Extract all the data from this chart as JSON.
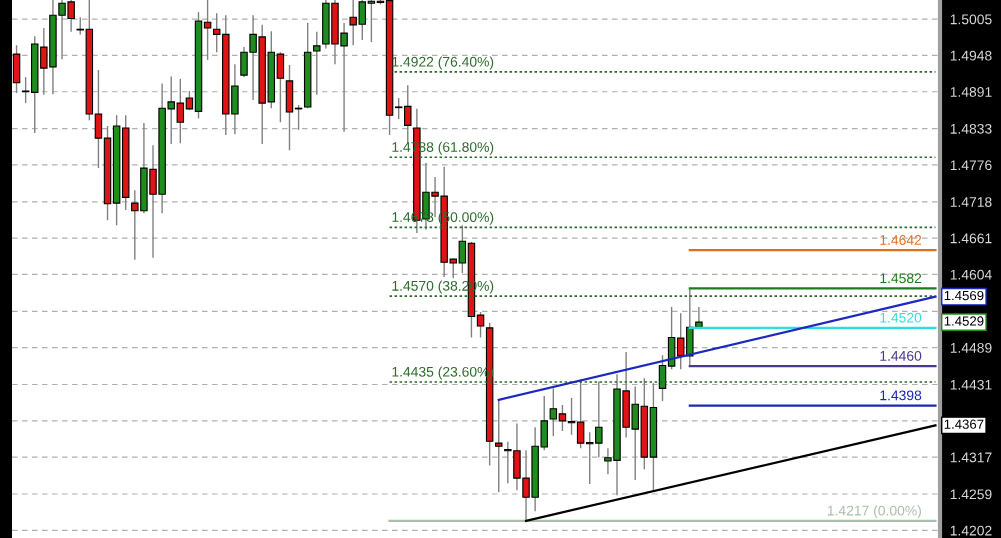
{
  "chart_data": {
    "type": "candlestick",
    "categories": [
      null,
      null,
      null,
      null,
      null,
      null,
      null,
      null,
      null,
      null,
      null,
      null,
      null,
      null,
      null,
      null,
      null,
      null,
      null,
      null,
      null,
      null,
      null,
      null,
      null,
      null,
      null,
      null,
      null,
      null,
      null,
      null,
      null,
      null,
      null,
      null,
      null,
      null,
      null,
      null,
      null,
      null,
      null,
      null,
      null,
      null,
      null,
      null,
      null,
      null,
      null,
      null,
      null,
      null,
      null,
      null,
      null,
      null,
      null,
      null,
      null,
      null,
      null,
      null,
      null,
      null,
      null,
      null,
      null,
      null,
      null,
      null,
      null,
      null,
      null,
      null,
      null,
      null,
      null,
      null,
      null,
      null,
      null,
      null,
      null,
      null,
      null,
      null,
      null,
      null,
      null,
      null,
      null,
      null,
      null,
      null,
      null,
      null,
      null,
      null,
      null,
      null
    ],
    "ohlc": [
      [
        1.495,
        1.4964,
        1.4889,
        1.4905
      ],
      [
        1.4892,
        1.4914,
        1.4873,
        1.4891
      ],
      [
        1.489,
        1.4978,
        1.4826,
        1.4966
      ],
      [
        1.4961,
        1.4991,
        1.4886,
        1.4928
      ],
      [
        1.493,
        1.5035,
        1.4887,
        1.5011
      ],
      [
        1.5011,
        1.5035,
        1.4942,
        1.503
      ],
      [
        1.5032,
        1.5035,
        1.4985,
        1.5006
      ],
      [
        1.4989,
        1.5008,
        1.4981,
        1.4988
      ],
      [
        1.4989,
        1.5035,
        1.4846,
        1.4856
      ],
      [
        1.4856,
        1.4925,
        1.4771,
        1.4818
      ],
      [
        1.4818,
        1.4837,
        1.4689,
        1.4715
      ],
      [
        1.4716,
        1.4854,
        1.4681,
        1.4837
      ],
      [
        1.4834,
        1.4854,
        1.4705,
        1.4725
      ],
      [
        1.4716,
        1.4736,
        1.4627,
        1.4704
      ],
      [
        1.4704,
        1.4842,
        1.47,
        1.4771
      ],
      [
        1.4769,
        1.4807,
        1.463,
        1.473
      ],
      [
        1.473,
        1.4904,
        1.47,
        1.4865
      ],
      [
        1.4864,
        1.4915,
        1.4809,
        1.4875
      ],
      [
        1.4873,
        1.4911,
        1.481,
        1.4843
      ],
      [
        1.4881,
        1.4892,
        1.4862,
        1.4864
      ],
      [
        1.486,
        1.5016,
        1.4849,
        1.5002
      ],
      [
        1.5,
        1.5035,
        1.4941,
        1.4991
      ],
      [
        1.4989,
        1.5014,
        1.4953,
        1.4981
      ],
      [
        1.4981,
        1.5011,
        1.4823,
        1.4856
      ],
      [
        1.4856,
        1.4934,
        1.4824,
        1.49
      ],
      [
        1.4917,
        1.4961,
        1.4914,
        1.4953
      ],
      [
        1.4953,
        1.5011,
        1.4878,
        1.4981
      ],
      [
        1.4977,
        1.4996,
        1.4809,
        1.4873
      ],
      [
        1.4875,
        1.4986,
        1.4865,
        1.4953
      ],
      [
        1.495,
        1.4953,
        1.4843,
        1.4912
      ],
      [
        1.4908,
        1.4933,
        1.4799,
        1.4859
      ],
      [
        1.4865,
        1.487,
        1.4831,
        1.4864
      ],
      [
        1.4867,
        1.4999,
        1.4865,
        1.4953
      ],
      [
        1.4955,
        1.4985,
        1.4886,
        1.4963
      ],
      [
        1.4966,
        1.5035,
        1.4959,
        1.503
      ],
      [
        1.503,
        1.5035,
        1.4934,
        1.4966
      ],
      [
        1.4963,
        1.4999,
        1.4828,
        1.4983
      ],
      [
        1.5008,
        1.5035,
        1.4964,
        1.4996
      ],
      [
        1.4997,
        1.5035,
        1.4972,
        1.5032
      ],
      [
        1.503,
        1.5035,
        1.4969,
        1.5033
      ],
      [
        1.5033,
        1.5035,
        1.5028,
        1.5031
      ],
      [
        1.5034,
        1.5035,
        1.4823,
        1.4854
      ],
      [
        1.4867,
        1.4881,
        1.4848,
        1.4866
      ],
      [
        1.4868,
        1.4901,
        1.481,
        1.4838
      ],
      [
        1.4834,
        1.4864,
        1.4669,
        1.4689
      ],
      [
        1.4691,
        1.4779,
        1.4674,
        1.4733
      ],
      [
        1.4733,
        1.4757,
        1.4694,
        1.4727
      ],
      [
        1.4727,
        1.4773,
        1.46,
        1.4623
      ],
      [
        1.4628,
        1.4629,
        1.4598,
        1.4622
      ],
      [
        1.4622,
        1.4681,
        1.4606,
        1.4656
      ],
      [
        1.4653,
        1.4655,
        1.4505,
        1.4538
      ],
      [
        1.454,
        1.4545,
        1.4505,
        1.4523
      ],
      [
        1.452,
        1.4528,
        1.4304,
        1.4342
      ],
      [
        1.4339,
        1.4408,
        1.4262,
        1.4334
      ],
      [
        1.4329,
        1.4341,
        1.4276,
        1.4327
      ],
      [
        1.4327,
        1.437,
        1.4265,
        1.4284
      ],
      [
        1.4284,
        1.4328,
        1.4217,
        1.4254
      ],
      [
        1.4254,
        1.4364,
        1.4232,
        1.4334
      ],
      [
        1.4333,
        1.4413,
        1.4328,
        1.4374
      ],
      [
        1.4377,
        1.4425,
        1.435,
        1.4393
      ],
      [
        1.4385,
        1.4399,
        1.4358,
        1.4374
      ],
      [
        1.4373,
        1.441,
        1.4352,
        1.4371
      ],
      [
        1.4372,
        1.4439,
        1.4331,
        1.4339
      ],
      [
        1.434,
        1.4356,
        1.4275,
        1.4338
      ],
      [
        1.4339,
        1.4436,
        1.4317,
        1.4364
      ],
      [
        1.4311,
        1.4331,
        1.429,
        1.4316
      ],
      [
        1.4312,
        1.4447,
        1.4257,
        1.4424
      ],
      [
        1.4421,
        1.4482,
        1.4348,
        1.4364
      ],
      [
        1.4361,
        1.4428,
        1.4281,
        1.44
      ],
      [
        1.4397,
        1.4441,
        1.4298,
        1.4317
      ],
      [
        1.4317,
        1.4433,
        1.4264,
        1.4395
      ],
      [
        1.4425,
        1.4477,
        1.4405,
        1.4461
      ],
      [
        1.446,
        1.4553,
        1.4455,
        1.4505
      ],
      [
        1.4504,
        1.4543,
        1.4455,
        1.4476
      ],
      [
        1.4476,
        1.4582,
        1.446,
        1.4521
      ],
      [
        1.4521,
        1.4553,
        1.452,
        1.4529
      ],
      null,
      null,
      null,
      null,
      null,
      null,
      null,
      null,
      null,
      null,
      null,
      null,
      null,
      null,
      null,
      null,
      null,
      null,
      null,
      null,
      null,
      null,
      null,
      null,
      null,
      null
    ],
    "colors": [
      "#e01414",
      "#e01414",
      "#1e8c1e",
      "#e01414",
      "#1e8c1e",
      "#1e8c1e",
      "#e01414",
      "#e01414",
      "#e01414",
      "#e01414",
      "#e01414",
      "#1e8c1e",
      "#e01414",
      "#e01414",
      "#1e8c1e",
      "#e01414",
      "#1e8c1e",
      "#1e8c1e",
      "#e01414",
      "#e01414",
      "#1e8c1e",
      "#e01414",
      "#e01414",
      "#e01414",
      "#1e8c1e",
      "#1e8c1e",
      "#1e8c1e",
      "#e01414",
      "#1e8c1e",
      "#e01414",
      "#e01414",
      "#e01414",
      "#1e8c1e",
      "#1e8c1e",
      "#1e8c1e",
      "#e01414",
      "#1e8c1e",
      "#e01414",
      "#1e8c1e",
      "#1e8c1e",
      "#e01414",
      "#e01414",
      "#e01414",
      "#e01414",
      "#e01414",
      "#1e8c1e",
      "#e01414",
      "#e01414",
      "#e01414",
      "#1e8c1e",
      "#e01414",
      "#e01414",
      "#e01414",
      "#e01414",
      "#e01414",
      "#e01414",
      "#e01414",
      "#1e8c1e",
      "#1e8c1e",
      "#1e8c1e",
      "#e01414",
      "#e01414",
      "#e01414",
      "#e01414",
      "#1e8c1e",
      "#1e8c1e",
      "#1e8c1e",
      "#e01414",
      "#1e8c1e",
      "#e01414",
      "#1e8c1e",
      "#1e8c1e",
      "#1e8c1e",
      "#e01414",
      "#1e8c1e",
      "#1e8c1e",
      null,
      null,
      null,
      null,
      null,
      null,
      null,
      null,
      null,
      null,
      null,
      null,
      null,
      null,
      null,
      null,
      null,
      null,
      null,
      null,
      null,
      null,
      null,
      null,
      null,
      null
    ],
    "series": [
      {
        "type": "line",
        "name": "1.4922 (76.40%)",
        "color": "#2d6a2d",
        "line_style": "dotted",
        "values": [
          null,
          null,
          null,
          null,
          null,
          null,
          null,
          null,
          null,
          null,
          null,
          null,
          null,
          null,
          null,
          null,
          null,
          null,
          null,
          null,
          null,
          null,
          null,
          null,
          null,
          null,
          null,
          null,
          null,
          null,
          null,
          null,
          null,
          null,
          null,
          null,
          null,
          null,
          null,
          null,
          null,
          1.4922,
          1.4922,
          1.4922,
          1.4922,
          1.4922,
          1.4922,
          1.4922,
          1.4922,
          1.4922,
          1.4922,
          1.4922,
          1.4922,
          1.4922,
          1.4922,
          1.4922,
          1.4922,
          1.4922,
          1.4922,
          1.4922,
          1.4922,
          1.4922,
          1.4922,
          1.4922,
          1.4922,
          1.4922,
          1.4922,
          1.4922,
          1.4922,
          1.4922,
          1.4922,
          1.4922,
          1.4922,
          1.4922,
          1.4922,
          1.4922,
          1.4922,
          1.4922,
          1.4922,
          1.4922,
          1.4922,
          1.4922,
          1.4922,
          1.4922,
          1.4922,
          1.4922,
          1.4922,
          1.4922,
          1.4922,
          1.4922,
          1.4922,
          1.4922,
          1.4922,
          1.4922,
          1.4922,
          1.4922,
          1.4922,
          1.4922,
          1.4922,
          1.4922,
          1.4922,
          1.4922
        ]
      },
      {
        "type": "line",
        "name": "1.4788 (61.80%)",
        "color": "#2d6a2d",
        "line_style": "dotted",
        "values": [
          null,
          null,
          null,
          null,
          null,
          null,
          null,
          null,
          null,
          null,
          null,
          null,
          null,
          null,
          null,
          null,
          null,
          null,
          null,
          null,
          null,
          null,
          null,
          null,
          null,
          null,
          null,
          null,
          null,
          null,
          null,
          null,
          null,
          null,
          null,
          null,
          null,
          null,
          null,
          null,
          null,
          1.4788,
          1.4788,
          1.4788,
          1.4788,
          1.4788,
          1.4788,
          1.4788,
          1.4788,
          1.4788,
          1.4788,
          1.4788,
          1.4788,
          1.4788,
          1.4788,
          1.4788,
          1.4788,
          1.4788,
          1.4788,
          1.4788,
          1.4788,
          1.4788,
          1.4788,
          1.4788,
          1.4788,
          1.4788,
          1.4788,
          1.4788,
          1.4788,
          1.4788,
          1.4788,
          1.4788,
          1.4788,
          1.4788,
          1.4788,
          1.4788,
          1.4788,
          1.4788,
          1.4788,
          1.4788,
          1.4788,
          1.4788,
          1.4788,
          1.4788,
          1.4788,
          1.4788,
          1.4788,
          1.4788,
          1.4788,
          1.4788,
          1.4788,
          1.4788,
          1.4788,
          1.4788,
          1.4788,
          1.4788,
          1.4788,
          1.4788,
          1.4788,
          1.4788,
          1.4788,
          1.4788
        ]
      },
      {
        "type": "line",
        "name": "1.4678 (50.00%)",
        "color": "#2d6a2d",
        "line_style": "dotted",
        "values": [
          null,
          null,
          null,
          null,
          null,
          null,
          null,
          null,
          null,
          null,
          null,
          null,
          null,
          null,
          null,
          null,
          null,
          null,
          null,
          null,
          null,
          null,
          null,
          null,
          null,
          null,
          null,
          null,
          null,
          null,
          null,
          null,
          null,
          null,
          null,
          null,
          null,
          null,
          null,
          null,
          null,
          1.4678,
          1.4678,
          1.4678,
          1.4678,
          1.4678,
          1.4678,
          1.4678,
          1.4678,
          1.4678,
          1.4678,
          1.4678,
          1.4678,
          1.4678,
          1.4678,
          1.4678,
          1.4678,
          1.4678,
          1.4678,
          1.4678,
          1.4678,
          1.4678,
          1.4678,
          1.4678,
          1.4678,
          1.4678,
          1.4678,
          1.4678,
          1.4678,
          1.4678,
          1.4678,
          1.4678,
          1.4678,
          1.4678,
          1.4678,
          1.4678,
          1.4678,
          1.4678,
          1.4678,
          1.4678,
          1.4678,
          1.4678,
          1.4678,
          1.4678,
          1.4678,
          1.4678,
          1.4678,
          1.4678,
          1.4678,
          1.4678,
          1.4678,
          1.4678,
          1.4678,
          1.4678,
          1.4678,
          1.4678,
          1.4678,
          1.4678,
          1.4678,
          1.4678,
          1.4678,
          1.4678
        ]
      },
      {
        "type": "line",
        "name": "1.4570 (38.20%)",
        "color": "#2d6a2d",
        "line_style": "dotted",
        "values": [
          null,
          null,
          null,
          null,
          null,
          null,
          null,
          null,
          null,
          null,
          null,
          null,
          null,
          null,
          null,
          null,
          null,
          null,
          null,
          null,
          null,
          null,
          null,
          null,
          null,
          null,
          null,
          null,
          null,
          null,
          null,
          null,
          null,
          null,
          null,
          null,
          null,
          null,
          null,
          null,
          null,
          1.457,
          1.457,
          1.457,
          1.457,
          1.457,
          1.457,
          1.457,
          1.457,
          1.457,
          1.457,
          1.457,
          1.457,
          1.457,
          1.457,
          1.457,
          1.457,
          1.457,
          1.457,
          1.457,
          1.457,
          1.457,
          1.457,
          1.457,
          1.457,
          1.457,
          1.457,
          1.457,
          1.457,
          1.457,
          1.457,
          1.457,
          1.457,
          1.457,
          1.457,
          1.457,
          1.457,
          1.457,
          1.457,
          1.457,
          1.457,
          1.457,
          1.457,
          1.457,
          1.457,
          1.457,
          1.457,
          1.457,
          1.457,
          1.457,
          1.457,
          1.457,
          1.457,
          1.457,
          1.457,
          1.457,
          1.457,
          1.457,
          1.457,
          1.457,
          1.457,
          1.457
        ]
      },
      {
        "type": "line",
        "name": "1.4435 (23.60%)",
        "color": "#2d6a2d",
        "line_style": "dotted",
        "values": [
          null,
          null,
          null,
          null,
          null,
          null,
          null,
          null,
          null,
          null,
          null,
          null,
          null,
          null,
          null,
          null,
          null,
          null,
          null,
          null,
          null,
          null,
          null,
          null,
          null,
          null,
          null,
          null,
          null,
          null,
          null,
          null,
          null,
          null,
          null,
          null,
          null,
          null,
          null,
          null,
          null,
          1.4435,
          1.4435,
          1.4435,
          1.4435,
          1.4435,
          1.4435,
          1.4435,
          1.4435,
          1.4435,
          1.4435,
          1.4435,
          1.4435,
          1.4435,
          1.4435,
          1.4435,
          1.4435,
          1.4435,
          1.4435,
          1.4435,
          1.4435,
          1.4435,
          1.4435,
          1.4435,
          1.4435,
          1.4435,
          1.4435,
          1.4435,
          1.4435,
          1.4435,
          1.4435,
          1.4435,
          1.4435,
          1.4435,
          1.4435,
          1.4435,
          1.4435,
          1.4435,
          1.4435,
          1.4435,
          1.4435,
          1.4435,
          1.4435,
          1.4435,
          1.4435,
          1.4435,
          1.4435,
          1.4435,
          1.4435,
          1.4435,
          1.4435,
          1.4435,
          1.4435,
          1.4435,
          1.4435,
          1.4435,
          1.4435,
          1.4435,
          1.4435,
          1.4435,
          1.4435,
          1.4435
        ]
      },
      {
        "type": "line",
        "name": "1.4217 (0.00%)",
        "color": "#a9bfa9",
        "line_style": "solid",
        "values": [
          null,
          null,
          null,
          null,
          null,
          null,
          null,
          null,
          null,
          null,
          null,
          null,
          null,
          null,
          null,
          null,
          null,
          null,
          null,
          null,
          null,
          null,
          null,
          null,
          null,
          null,
          null,
          null,
          null,
          null,
          null,
          null,
          null,
          null,
          null,
          null,
          null,
          null,
          null,
          null,
          null,
          1.4217,
          1.4217,
          1.4217,
          1.4217,
          1.4217,
          1.4217,
          1.4217,
          1.4217,
          1.4217,
          1.4217,
          1.4217,
          1.4217,
          1.4217,
          1.4217,
          1.4217,
          1.4217,
          1.4217,
          1.4217,
          1.4217,
          1.4217,
          1.4217,
          1.4217,
          1.4217,
          1.4217,
          1.4217,
          1.4217,
          1.4217,
          1.4217,
          1.4217,
          1.4217,
          1.4217,
          1.4217,
          1.4217,
          1.4217,
          1.4217,
          1.4217,
          1.4217,
          1.4217,
          1.4217,
          1.4217,
          1.4217,
          1.4217,
          1.4217,
          1.4217,
          1.4217,
          1.4217,
          1.4217,
          1.4217,
          1.4217,
          1.4217,
          1.4217,
          1.4217,
          1.4217,
          1.4217,
          1.4217,
          1.4217,
          1.4217,
          1.4217,
          1.4217,
          1.4217,
          1.4217
        ]
      },
      {
        "type": "line",
        "name": "1.4642",
        "color": "#e07020",
        "line_style": "solid",
        "values": [
          null,
          null,
          null,
          null,
          null,
          null,
          null,
          null,
          null,
          null,
          null,
          null,
          null,
          null,
          null,
          null,
          null,
          null,
          null,
          null,
          null,
          null,
          null,
          null,
          null,
          null,
          null,
          null,
          null,
          null,
          null,
          null,
          null,
          null,
          null,
          null,
          null,
          null,
          null,
          null,
          null,
          null,
          null,
          null,
          null,
          null,
          null,
          null,
          null,
          null,
          null,
          null,
          null,
          null,
          null,
          null,
          null,
          null,
          null,
          null,
          null,
          null,
          null,
          null,
          null,
          null,
          null,
          null,
          null,
          null,
          null,
          null,
          null,
          null,
          1.4642,
          1.4642,
          1.4642,
          1.4642,
          1.4642,
          1.4642,
          1.4642,
          1.4642,
          1.4642,
          1.4642,
          1.4642,
          1.4642,
          1.4642,
          1.4642,
          1.4642,
          1.4642,
          1.4642,
          1.4642,
          1.4642,
          1.4642,
          1.4642,
          1.4642,
          1.4642,
          1.4642,
          1.4642,
          1.4642,
          1.4642,
          1.4642
        ]
      },
      {
        "type": "line",
        "name": "1.4582",
        "color": "#1e7a1e",
        "line_style": "solid",
        "values": [
          null,
          null,
          null,
          null,
          null,
          null,
          null,
          null,
          null,
          null,
          null,
          null,
          null,
          null,
          null,
          null,
          null,
          null,
          null,
          null,
          null,
          null,
          null,
          null,
          null,
          null,
          null,
          null,
          null,
          null,
          null,
          null,
          null,
          null,
          null,
          null,
          null,
          null,
          null,
          null,
          null,
          null,
          null,
          null,
          null,
          null,
          null,
          null,
          null,
          null,
          null,
          null,
          null,
          null,
          null,
          null,
          null,
          null,
          null,
          null,
          null,
          null,
          null,
          null,
          null,
          null,
          null,
          null,
          null,
          null,
          null,
          null,
          null,
          null,
          1.4582,
          1.4582,
          1.4582,
          1.4582,
          1.4582,
          1.4582,
          1.4582,
          1.4582,
          1.4582,
          1.4582,
          1.4582,
          1.4582,
          1.4582,
          1.4582,
          1.4582,
          1.4582,
          1.4582,
          1.4582,
          1.4582,
          1.4582,
          1.4582,
          1.4582,
          1.4582,
          1.4582,
          1.4582,
          1.4582,
          1.4582,
          1.4582
        ]
      },
      {
        "type": "line",
        "name": "1.4520",
        "color": "#33dddd",
        "line_style": "solid",
        "values": [
          null,
          null,
          null,
          null,
          null,
          null,
          null,
          null,
          null,
          null,
          null,
          null,
          null,
          null,
          null,
          null,
          null,
          null,
          null,
          null,
          null,
          null,
          null,
          null,
          null,
          null,
          null,
          null,
          null,
          null,
          null,
          null,
          null,
          null,
          null,
          null,
          null,
          null,
          null,
          null,
          null,
          null,
          null,
          null,
          null,
          null,
          null,
          null,
          null,
          null,
          null,
          null,
          null,
          null,
          null,
          null,
          null,
          null,
          null,
          null,
          null,
          null,
          null,
          null,
          null,
          null,
          null,
          null,
          null,
          null,
          null,
          null,
          null,
          null,
          1.452,
          1.452,
          1.452,
          1.452,
          1.452,
          1.452,
          1.452,
          1.452,
          1.452,
          1.452,
          1.452,
          1.452,
          1.452,
          1.452,
          1.452,
          1.452,
          1.452,
          1.452,
          1.452,
          1.452,
          1.452,
          1.452,
          1.452,
          1.452,
          1.452,
          1.452,
          1.452,
          1.452
        ]
      },
      {
        "type": "line",
        "name": "1.4460",
        "color": "#4b3a8c",
        "line_style": "solid",
        "values": [
          null,
          null,
          null,
          null,
          null,
          null,
          null,
          null,
          null,
          null,
          null,
          null,
          null,
          null,
          null,
          null,
          null,
          null,
          null,
          null,
          null,
          null,
          null,
          null,
          null,
          null,
          null,
          null,
          null,
          null,
          null,
          null,
          null,
          null,
          null,
          null,
          null,
          null,
          null,
          null,
          null,
          null,
          null,
          null,
          null,
          null,
          null,
          null,
          null,
          null,
          null,
          null,
          null,
          null,
          null,
          null,
          null,
          null,
          null,
          null,
          null,
          null,
          null,
          null,
          null,
          null,
          null,
          null,
          null,
          null,
          null,
          null,
          null,
          null,
          1.446,
          1.446,
          1.446,
          1.446,
          1.446,
          1.446,
          1.446,
          1.446,
          1.446,
          1.446,
          1.446,
          1.446,
          1.446,
          1.446,
          1.446,
          1.446,
          1.446,
          1.446,
          1.446,
          1.446,
          1.446,
          1.446,
          1.446,
          1.446,
          1.446,
          1.446,
          1.446,
          1.446
        ]
      },
      {
        "type": "line",
        "name": "1.4398",
        "color": "#1c28b0",
        "line_style": "solid",
        "values": [
          null,
          null,
          null,
          null,
          null,
          null,
          null,
          null,
          null,
          null,
          null,
          null,
          null,
          null,
          null,
          null,
          null,
          null,
          null,
          null,
          null,
          null,
          null,
          null,
          null,
          null,
          null,
          null,
          null,
          null,
          null,
          null,
          null,
          null,
          null,
          null,
          null,
          null,
          null,
          null,
          null,
          null,
          null,
          null,
          null,
          null,
          null,
          null,
          null,
          null,
          null,
          null,
          null,
          null,
          null,
          null,
          null,
          null,
          null,
          null,
          null,
          null,
          null,
          null,
          null,
          null,
          null,
          null,
          null,
          null,
          null,
          null,
          null,
          null,
          1.4398,
          1.4398,
          1.4398,
          1.4398,
          1.4398,
          1.4398,
          1.4398,
          1.4398,
          1.4398,
          1.4398,
          1.4398,
          1.4398,
          1.4398,
          1.4398,
          1.4398,
          1.4398,
          1.4398,
          1.4398,
          1.4398,
          1.4398,
          1.4398,
          1.4398,
          1.4398,
          1.4398,
          1.4398,
          1.4398,
          1.4398,
          1.4398
        ]
      },
      {
        "type": "line",
        "color": "#1c28c0",
        "line_style": "solid",
        "values": [
          null,
          null,
          null,
          null,
          null,
          null,
          null,
          null,
          null,
          null,
          null,
          null,
          null,
          null,
          null,
          null,
          null,
          null,
          null,
          null,
          null,
          null,
          null,
          null,
          null,
          null,
          null,
          null,
          null,
          null,
          null,
          null,
          null,
          null,
          null,
          null,
          null,
          null,
          null,
          null,
          null,
          null,
          null,
          null,
          null,
          null,
          null,
          null,
          null,
          null,
          null,
          null,
          null,
          1.4407,
          null,
          null,
          null,
          null,
          null,
          null,
          null,
          null,
          null,
          null,
          null,
          null,
          null,
          null,
          null,
          null,
          null,
          null,
          null,
          null,
          null,
          null,
          null,
          null,
          null,
          null,
          null,
          null,
          null,
          null,
          null,
          null,
          null,
          null,
          null,
          null,
          null,
          null,
          null,
          null,
          null,
          null,
          null,
          null,
          null,
          null,
          null,
          1.4569
        ],
        "value_labels": [
          null,
          null,
          null,
          null,
          null,
          null,
          null,
          null,
          null,
          null,
          null,
          null,
          null,
          null,
          null,
          null,
          null,
          null,
          null,
          null,
          null,
          null,
          null,
          null,
          null,
          null,
          null,
          null,
          null,
          null,
          null,
          null,
          null,
          null,
          null,
          null,
          null,
          null,
          null,
          null,
          null,
          null,
          null,
          null,
          null,
          null,
          null,
          null,
          null,
          null,
          null,
          null,
          null,
          null,
          null,
          null,
          null,
          null,
          null,
          null,
          null,
          null,
          null,
          null,
          null,
          null,
          null,
          null,
          null,
          null,
          null,
          null,
          null,
          null,
          null,
          null,
          null,
          null,
          null,
          null,
          null,
          null,
          null,
          null,
          null,
          null,
          null,
          null,
          null,
          null,
          null,
          null,
          null,
          null,
          null,
          null,
          null,
          null,
          null,
          null,
          null,
          "1.4569"
        ]
      },
      {
        "type": "line",
        "color": "#000000",
        "line_style": "solid",
        "values": [
          null,
          null,
          null,
          null,
          null,
          null,
          null,
          null,
          null,
          null,
          null,
          null,
          null,
          null,
          null,
          null,
          null,
          null,
          null,
          null,
          null,
          null,
          null,
          null,
          null,
          null,
          null,
          null,
          null,
          null,
          null,
          null,
          null,
          null,
          null,
          null,
          null,
          null,
          null,
          null,
          null,
          null,
          null,
          null,
          null,
          null,
          null,
          null,
          null,
          null,
          null,
          null,
          null,
          null,
          null,
          null,
          1.4217,
          null,
          null,
          null,
          null,
          null,
          null,
          null,
          null,
          null,
          null,
          null,
          null,
          null,
          null,
          null,
          null,
          null,
          null,
          null,
          null,
          null,
          null,
          null,
          null,
          null,
          null,
          null,
          null,
          null,
          null,
          null,
          null,
          null,
          null,
          null,
          null,
          null,
          null,
          null,
          null,
          null,
          null,
          null,
          null,
          1.4367
        ],
        "value_labels": [
          null,
          null,
          null,
          null,
          null,
          null,
          null,
          null,
          null,
          null,
          null,
          null,
          null,
          null,
          null,
          null,
          null,
          null,
          null,
          null,
          null,
          null,
          null,
          null,
          null,
          null,
          null,
          null,
          null,
          null,
          null,
          null,
          null,
          null,
          null,
          null,
          null,
          null,
          null,
          null,
          null,
          null,
          null,
          null,
          null,
          null,
          null,
          null,
          null,
          null,
          null,
          null,
          null,
          null,
          null,
          null,
          null,
          null,
          null,
          null,
          null,
          null,
          null,
          null,
          null,
          null,
          null,
          null,
          null,
          null,
          null,
          null,
          null,
          null,
          null,
          null,
          null,
          null,
          null,
          null,
          null,
          null,
          null,
          null,
          null,
          null,
          null,
          null,
          null,
          null,
          null,
          null,
          null,
          null,
          null,
          null,
          null,
          null,
          null,
          null,
          null,
          "1.4367"
        ]
      }
    ],
    "value_labels": [
      null,
      null,
      null,
      null,
      null,
      null,
      null,
      null,
      null,
      null,
      null,
      null,
      null,
      null,
      null,
      null,
      null,
      null,
      null,
      null,
      null,
      null,
      null,
      null,
      null,
      null,
      null,
      null,
      null,
      null,
      null,
      null,
      null,
      null,
      null,
      null,
      null,
      null,
      null,
      null,
      null,
      null,
      null,
      null,
      null,
      null,
      null,
      null,
      null,
      null,
      null,
      null,
      null,
      null,
      null,
      null,
      null,
      null,
      null,
      null,
      null,
      null,
      null,
      null,
      null,
      null,
      null,
      null,
      null,
      null,
      null,
      null,
      null,
      null,
      null,
      "1.4529",
      null,
      null,
      null,
      null,
      null,
      null,
      null,
      null,
      null,
      null,
      null,
      null,
      null,
      null,
      null,
      null,
      null,
      null,
      null,
      null,
      null,
      null,
      null,
      null,
      null,
      null
    ],
    "ylim": [
      1.419,
      1.5035
    ],
    "yticks": [
      1.5005,
      1.4948,
      1.4891,
      1.4833,
      1.4776,
      1.4718,
      1.4661,
      1.4604,
      {
        "value": 1.4546,
        "label": null
      },
      1.4489,
      1.4431,
      {
        "value": 1.4374,
        "label": null
      },
      1.4317,
      1.4259,
      1.4202
    ],
    "grid": "y",
    "tick_labels": "y"
  }
}
